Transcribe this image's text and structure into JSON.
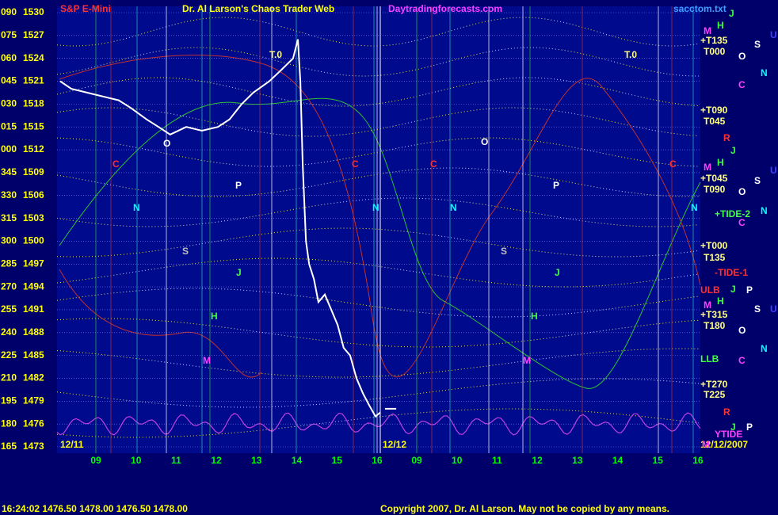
{
  "header": {
    "symbol": "S&P E-Mini",
    "title": "Dr. Al Larson's Chaos Trader Web",
    "site": "Daytradingforecasts.com",
    "file": "sacctom.txt"
  },
  "chart_data": {
    "type": "line",
    "series": [
      {
        "color": "#ffffff",
        "x": [
          8.11,
          8.39,
          8.78,
          9.18,
          9.57,
          9.87,
          10.26,
          10.56,
          10.85,
          11.25,
          11.64,
          12.04,
          12.33,
          12.63,
          12.92,
          13.32,
          13.62,
          13.91,
          14.03,
          14.09,
          14.15,
          14.23,
          14.31,
          14.43,
          14.54,
          14.7,
          14.86,
          15.02,
          15.17,
          15.33,
          15.49,
          15.65,
          15.8,
          15.96,
          16.08
        ],
        "values": [
          1521,
          1520,
          1519.5,
          1519,
          1518.5,
          1517.5,
          1516,
          1515,
          1514,
          1515,
          1514.5,
          1515,
          1516,
          1518,
          1519.5,
          1521,
          1522.5,
          1524,
          1526.5,
          1521,
          1510,
          1500,
          1497,
          1495,
          1492,
          1493,
          1491,
          1489,
          1486,
          1485,
          1482,
          1480,
          1478.5,
          1477,
          1477.5
        ]
      },
      {
        "color": "#ffffff",
        "x": [
          8.21,
          8.49
        ],
        "values": [
          1478,
          1478
        ]
      }
    ],
    "ylim": [
      1473,
      1530
    ],
    "yticks": [
      1473,
      1476,
      1479,
      1482,
      1485,
      1488,
      1491,
      1494,
      1497,
      1500,
      1503,
      1506,
      1509,
      1512,
      1515,
      1518,
      1521,
      1524,
      1527,
      1530
    ],
    "degree_labels": [
      "165",
      "180",
      "195",
      "210",
      "225",
      "240",
      "255",
      "270",
      "285",
      "300",
      "315",
      "330",
      "345",
      "000",
      "015",
      "030",
      "045",
      "060",
      "075",
      "090"
    ],
    "hour_labels": [
      "09",
      "10",
      "11",
      "12",
      "13",
      "14",
      "15",
      "16",
      "09",
      "10",
      "11",
      "12",
      "13",
      "14",
      "15",
      "16"
    ],
    "dates": [
      "12/11",
      "12/12"
    ],
    "level_labels": [
      {
        "text": "+T135",
        "color": "#ffff80"
      },
      {
        "text": "T000",
        "color": "#ffff80"
      },
      {
        "text": "+T090",
        "color": "#ffff80"
      },
      {
        "text": "T045",
        "color": "#ffff80"
      },
      {
        "text": "+T045",
        "color": "#ffff80"
      },
      {
        "text": "T090",
        "color": "#ffff80"
      },
      {
        "text": "+TIDE-2",
        "color": "#40ff40"
      },
      {
        "text": "+T000",
        "color": "#ffff80"
      },
      {
        "text": "T135",
        "color": "#ffff80"
      },
      {
        "text": "-TIDE-1",
        "color": "#ff3030"
      },
      {
        "text": "ULB",
        "color": "#ff3030"
      },
      {
        "text": "+T315",
        "color": "#ffff80"
      },
      {
        "text": "T180",
        "color": "#ffff80"
      },
      {
        "text": "LLB",
        "color": "#40ff40"
      },
      {
        "text": "+T270",
        "color": "#ffff80"
      },
      {
        "text": "T225",
        "color": "#ffff80"
      },
      {
        "text": "YTIDE",
        "color": "#ff40ff"
      },
      {
        "text": "12/12/2007",
        "color": "#ffff00"
      }
    ],
    "annotations": [
      {
        "text": "T.0",
        "color": "#ffff80"
      },
      {
        "text": "T.0",
        "color": "#ffff80"
      },
      {
        "text": "O",
        "color": "#ffffff"
      },
      {
        "text": "O",
        "color": "#ffffff"
      },
      {
        "text": "P",
        "color": "#ffffff"
      },
      {
        "text": "P",
        "color": "#ffffff"
      },
      {
        "text": "S",
        "color": "#c0c0c0"
      },
      {
        "text": "S",
        "color": "#c0c0c0"
      },
      {
        "text": "C",
        "color": "#ff3030"
      },
      {
        "text": "C",
        "color": "#ff3030"
      },
      {
        "text": "C",
        "color": "#ff3030"
      },
      {
        "text": "C",
        "color": "#ff3030"
      },
      {
        "text": "N",
        "color": "#00ffff"
      },
      {
        "text": "N",
        "color": "#00ffff"
      },
      {
        "text": "N",
        "color": "#00ffff"
      },
      {
        "text": "N",
        "color": "#00ffff"
      },
      {
        "text": "H",
        "color": "#40ff40"
      },
      {
        "text": "H",
        "color": "#40ff40"
      },
      {
        "text": "M",
        "color": "#ff40ff"
      },
      {
        "text": "M",
        "color": "#ff40ff"
      },
      {
        "text": "J",
        "color": "#40ff40"
      },
      {
        "text": "J",
        "color": "#40ff40"
      },
      {
        "text": "M",
        "color": "#ff40ff"
      },
      {
        "text": "M",
        "color": "#ff40ff"
      },
      {
        "text": "M",
        "color": "#ff40ff"
      },
      {
        "text": "M",
        "color": "#ff40ff"
      },
      {
        "text": "J",
        "color": "#40ff40"
      },
      {
        "text": "H",
        "color": "#40ff40"
      },
      {
        "text": "U",
        "color": "#4040ff"
      },
      {
        "text": "S",
        "color": "#ffffff"
      },
      {
        "text": "O",
        "color": "#ffffff"
      },
      {
        "text": "N",
        "color": "#00ffff"
      },
      {
        "text": "C",
        "color": "#ff40ff"
      },
      {
        "text": "R",
        "color": "#ff3030"
      },
      {
        "text": "J",
        "color": "#40ff40"
      },
      {
        "text": "H",
        "color": "#40ff40"
      },
      {
        "text": "U",
        "color": "#4040ff"
      },
      {
        "text": "S",
        "color": "#ffffff"
      },
      {
        "text": "O",
        "color": "#ffffff"
      },
      {
        "text": "N",
        "color": "#00ffff"
      },
      {
        "text": "C",
        "color": "#ff40ff"
      },
      {
        "text": "H",
        "color": "#40ff40"
      },
      {
        "text": "J",
        "color": "#40ff40"
      },
      {
        "text": "P",
        "color": "#ffffff"
      },
      {
        "text": "S",
        "color": "#ffffff"
      },
      {
        "text": "U",
        "color": "#4040ff"
      },
      {
        "text": "O",
        "color": "#ffffff"
      },
      {
        "text": "N",
        "color": "#00ffff"
      },
      {
        "text": "C",
        "color": "#ff40ff"
      },
      {
        "text": "R",
        "color": "#ff3030"
      },
      {
        "text": "J",
        "color": "#40ff40"
      },
      {
        "text": "P",
        "color": "#ffffff"
      }
    ],
    "quote": "16:24:02  1476.50 1478.00 1476.50 1478.00",
    "copyright": "Copyright 2007, Dr. Al Larson. May not be copied by any means."
  }
}
